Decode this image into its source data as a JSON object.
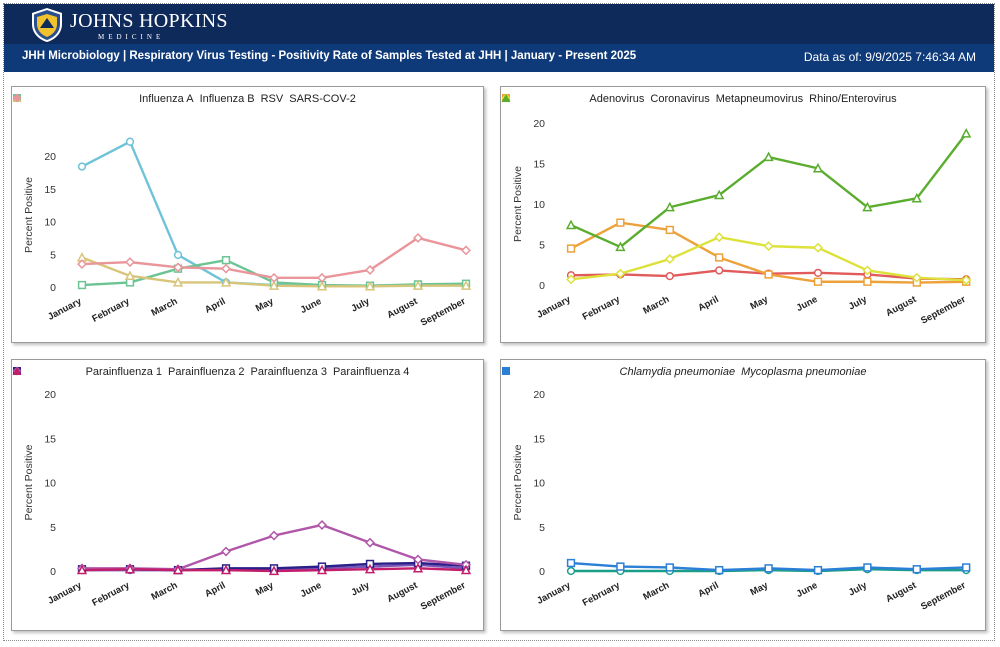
{
  "header": {
    "logo_title": "JOHNS HOPKINS",
    "logo_subtitle": "MEDICINE",
    "title": "JHH Microbiology | Respiratory Virus Testing - Positivity Rate of Samples Tested at JHH | January - Present 2025",
    "data_as_of": "Data as of: 9/9/2025 7:46:34 AM"
  },
  "colors": {
    "header_top": "#0e2a5a",
    "header_title_bar": "#0f3a7a"
  },
  "chart_data": [
    {
      "type": "line",
      "ylabel": "Percent Positive",
      "categories": [
        "January",
        "February",
        "March",
        "April",
        "May",
        "June",
        "July",
        "August",
        "September"
      ],
      "ylim": [
        0,
        22
      ],
      "yticks": [
        0,
        5,
        10,
        15,
        20
      ],
      "series": [
        {
          "name": "Influenza A",
          "color": "#6fc3d8",
          "marker": "circle",
          "values": [
            18.4,
            22.2,
            4.9,
            0.7,
            0.3,
            0.2,
            0.2,
            0.3,
            0.4
          ]
        },
        {
          "name": "Influenza B",
          "color": "#6cc494",
          "marker": "square",
          "values": [
            0.3,
            0.7,
            2.8,
            4.1,
            0.7,
            0.3,
            0.2,
            0.4,
            0.5
          ]
        },
        {
          "name": "RSV",
          "color": "#d8c57a",
          "marker": "triangle",
          "values": [
            4.5,
            1.7,
            0.7,
            0.7,
            0.2,
            0.1,
            0.1,
            0.2,
            0.2
          ]
        },
        {
          "name": "SARS-COV-2",
          "color": "#e9959a",
          "marker": "diamond",
          "values": [
            3.5,
            3.8,
            3.0,
            2.8,
            1.4,
            1.4,
            2.6,
            7.5,
            5.6
          ]
        }
      ]
    },
    {
      "type": "line",
      "ylabel": "Percent Positive",
      "categories": [
        "January",
        "February",
        "March",
        "April",
        "May",
        "June",
        "July",
        "August",
        "September"
      ],
      "ylim": [
        0,
        20
      ],
      "yticks": [
        0,
        5,
        10,
        15,
        20
      ],
      "series": [
        {
          "name": "Adenovirus",
          "color": "#e25b5b",
          "marker": "circle",
          "values": [
            1.2,
            1.3,
            1.1,
            1.8,
            1.4,
            1.5,
            1.3,
            0.8,
            0.7
          ]
        },
        {
          "name": "Coronavirus",
          "color": "#eda13a",
          "marker": "square",
          "values": [
            4.5,
            7.7,
            6.8,
            3.4,
            1.3,
            0.4,
            0.4,
            0.3,
            0.4
          ]
        },
        {
          "name": "Metapneumovirus",
          "color": "#dde23a",
          "marker": "diamond",
          "values": [
            0.7,
            1.4,
            3.2,
            5.9,
            4.8,
            4.6,
            1.8,
            0.9,
            0.6
          ]
        },
        {
          "name": "Rhino/Enterovirus",
          "color": "#5aad2e",
          "marker": "triangle",
          "values": [
            7.4,
            4.7,
            9.6,
            11.1,
            15.8,
            14.4,
            9.6,
            10.7,
            18.7
          ]
        }
      ]
    },
    {
      "type": "line",
      "ylabel": "Percent Positive",
      "categories": [
        "January",
        "February",
        "March",
        "April",
        "May",
        "June",
        "July",
        "August",
        "September"
      ],
      "ylim": [
        0,
        20
      ],
      "yticks": [
        0,
        5,
        10,
        15,
        20
      ],
      "series": [
        {
          "name": "Parainfluenza 1",
          "color": "#7a55b8",
          "marker": "circle",
          "values": [
            0.1,
            0.1,
            0.1,
            0.2,
            0.2,
            0.3,
            0.5,
            0.7,
            0.3
          ]
        },
        {
          "name": "Parainfluenza 2",
          "color": "#2a2088",
          "marker": "square",
          "values": [
            0.2,
            0.2,
            0.1,
            0.3,
            0.3,
            0.5,
            0.8,
            0.9,
            0.6
          ]
        },
        {
          "name": "Parainfluenza 3",
          "color": "#b057a9",
          "marker": "diamond",
          "values": [
            0.3,
            0.3,
            0.2,
            2.2,
            4.0,
            5.2,
            3.2,
            1.3,
            0.7
          ]
        },
        {
          "name": "Parainfluenza 4",
          "color": "#c21e6b",
          "marker": "triangle",
          "values": [
            0.1,
            0.2,
            0.1,
            0.1,
            0.0,
            0.1,
            0.2,
            0.3,
            0.1
          ]
        }
      ]
    },
    {
      "type": "line",
      "ylabel": "Percent Positive",
      "categories": [
        "January",
        "February",
        "March",
        "April",
        "May",
        "June",
        "July",
        "August",
        "September"
      ],
      "ylim": [
        0,
        20
      ],
      "yticks": [
        0,
        5,
        10,
        15,
        20
      ],
      "series": [
        {
          "name": "Chlamydia pneumoniae",
          "color": "#1a9e8a",
          "marker": "circle",
          "italic": true,
          "values": [
            0.0,
            0.0,
            0.0,
            0.0,
            0.1,
            0.0,
            0.2,
            0.1,
            0.1
          ]
        },
        {
          "name": "Mycoplasma pneumoniae",
          "color": "#2b7fd6",
          "marker": "square",
          "italic": true,
          "values": [
            0.9,
            0.5,
            0.4,
            0.1,
            0.3,
            0.1,
            0.4,
            0.2,
            0.4
          ]
        }
      ]
    }
  ]
}
